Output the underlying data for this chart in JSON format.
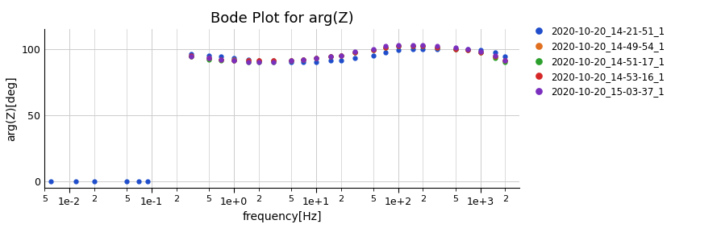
{
  "title": "Bode Plot for arg(Z)",
  "xlabel": "frequency[Hz]",
  "ylabel": "arg(Z)[deg]",
  "xlim": [
    0.005,
    3000
  ],
  "ylim": [
    -5,
    115
  ],
  "yticks": [
    0,
    50,
    100
  ],
  "series": [
    {
      "label": "2020-10-20_14-21-51_1",
      "color": "#1f4dcb",
      "low_freq_points": {
        "x": [
          0.006,
          0.012,
          0.02,
          0.05,
          0.07,
          0.09
        ],
        "y": [
          0,
          0,
          0,
          0,
          0,
          0
        ]
      },
      "high_freq_points": {
        "x": [
          0.3,
          0.5,
          0.7,
          1.0,
          1.5,
          2.0,
          3.0,
          5.0,
          7.0,
          10,
          15,
          20,
          30,
          50,
          70,
          100,
          150,
          200,
          300,
          500,
          700,
          1000,
          1500,
          2000
        ],
        "y": [
          96,
          95,
          94,
          93,
          92,
          91,
          91,
          90,
          90,
          90,
          91,
          91,
          93,
          95,
          97,
          99,
          100,
          100,
          100,
          100,
          100,
          99,
          97,
          94
        ]
      }
    },
    {
      "label": "2020-10-20_14-49-54_1",
      "color": "#e07020",
      "low_freq_points": null,
      "high_freq_points": {
        "x": [
          0.3,
          0.5,
          0.7,
          1.0,
          1.5,
          2.0,
          3.0,
          5.0,
          7.0,
          10,
          15,
          20,
          30,
          50,
          70,
          100,
          150,
          200,
          300,
          500,
          700,
          1000,
          1500,
          2000
        ],
        "y": [
          94,
          93,
          92,
          92,
          91,
          91,
          91,
          91,
          92,
          93,
          94,
          95,
          97,
          99,
          101,
          102,
          102,
          102,
          101,
          100,
          99,
          97,
          94,
          91
        ]
      }
    },
    {
      "label": "2020-10-20_14-51-17_1",
      "color": "#2ca02c",
      "low_freq_points": null,
      "high_freq_points": {
        "x": [
          0.3,
          0.5,
          0.7,
          1.0,
          1.5,
          2.0,
          3.0,
          5.0,
          7.0,
          10,
          15,
          20,
          30,
          50,
          70,
          100,
          150,
          200,
          300,
          500,
          700,
          1000,
          1500,
          2000
        ],
        "y": [
          94,
          92,
          91,
          91,
          90,
          90,
          90,
          91,
          92,
          93,
          94,
          95,
          97,
          99,
          101,
          102,
          102,
          102,
          101,
          100,
          99,
          97,
          93,
          90
        ]
      }
    },
    {
      "label": "2020-10-20_14-53-16_1",
      "color": "#d62728",
      "low_freq_points": null,
      "high_freq_points": {
        "x": [
          0.3,
          0.5,
          0.7,
          1.0,
          1.5,
          2.0,
          3.0,
          5.0,
          7.0,
          10,
          15,
          20,
          30,
          50,
          70,
          100,
          150,
          200,
          300,
          500,
          700,
          1000,
          1500,
          2000
        ],
        "y": [
          95,
          93,
          92,
          91,
          91,
          91,
          91,
          91,
          92,
          93,
          94,
          95,
          97,
          99,
          101,
          102,
          102,
          102,
          101,
          100,
          99,
          97,
          94,
          91
        ]
      }
    },
    {
      "label": "2020-10-20_15-03-37_1",
      "color": "#7b2fbe",
      "low_freq_points": null,
      "high_freq_points": {
        "x": [
          0.3,
          0.5,
          0.7,
          1.0,
          1.5,
          2.0,
          3.0,
          5.0,
          7.0,
          10,
          15,
          20,
          30,
          50,
          70,
          100,
          150,
          200,
          300,
          500,
          700,
          1000,
          1500,
          2000
        ],
        "y": [
          94,
          93,
          92,
          91,
          90,
          90,
          90,
          91,
          92,
          93,
          94,
          95,
          98,
          100,
          102,
          103,
          103,
          103,
          102,
          101,
          100,
          98,
          95,
          91
        ]
      }
    }
  ],
  "background_color": "#ffffff",
  "grid_color": "#cccccc",
  "title_fontsize": 13,
  "label_fontsize": 10,
  "legend_fontsize": 8.5,
  "marker_size": 3.5,
  "major_locs": [
    0.01,
    0.1,
    1.0,
    10.0,
    100.0,
    1000.0
  ],
  "minor_locs": [
    0.005,
    0.02,
    0.05,
    0.2,
    0.5,
    2.0,
    5.0,
    20.0,
    50.0,
    200.0,
    500.0,
    2000.0
  ],
  "major_labels": [
    "1e-2",
    "1e-1",
    "1e+0",
    "1e+1",
    "1e+2",
    "1e+3"
  ],
  "minor_labels": {
    "0.005": "5",
    "0.02": "2",
    "0.05": "5",
    "0.2": "2",
    "0.5": "5",
    "2.0": "2",
    "5.0": "5",
    "20.0": "2",
    "50.0": "5",
    "200.0": "2",
    "500.0": "5",
    "2000.0": "2"
  }
}
